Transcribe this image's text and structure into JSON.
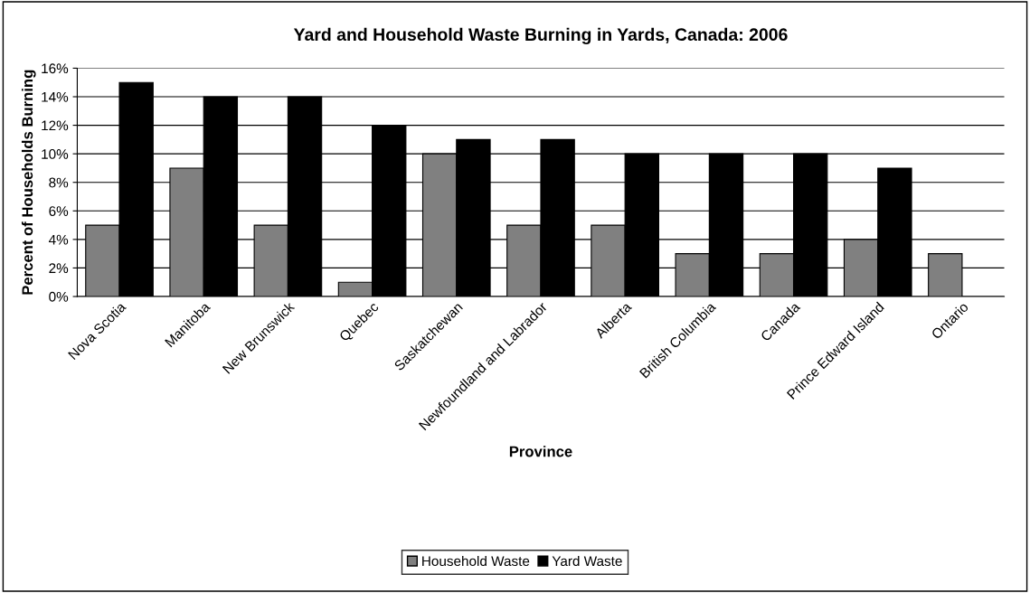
{
  "chart_data": {
    "type": "bar",
    "title": "Yard and Household Waste Burning in Yards, Canada: 2006",
    "xlabel": "Province",
    "ylabel": "Percent of Households Burning",
    "categories": [
      "Nova Scotia",
      "Manitoba",
      "New Brunswick",
      "Quebec",
      "Saskatchewan",
      "Newfoundland and Labrador",
      "Alberta",
      "British Columbia",
      "Canada",
      "Prince Edward Island",
      "Ontario"
    ],
    "series": [
      {
        "name": "Household Waste",
        "color": "#808080",
        "values": [
          5,
          9,
          5,
          1,
          10,
          5,
          5,
          3,
          3,
          4,
          3
        ]
      },
      {
        "name": "Yard Waste",
        "color": "#000000",
        "values": [
          15,
          14,
          14,
          12,
          11,
          11,
          10,
          10,
          10,
          9,
          null
        ]
      }
    ],
    "ylim": [
      0,
      16
    ],
    "yticks": [
      {
        "value": 0,
        "label": "0%"
      },
      {
        "value": 2,
        "label": "2%"
      },
      {
        "value": 4,
        "label": "4%"
      },
      {
        "value": 6,
        "label": "6%"
      },
      {
        "value": 8,
        "label": "8%"
      },
      {
        "value": 10,
        "label": "10%"
      },
      {
        "value": 12,
        "label": "12%"
      },
      {
        "value": 14,
        "label": "14%"
      },
      {
        "value": 16,
        "label": "16%"
      }
    ],
    "grid": "y",
    "legend": "bottom"
  }
}
